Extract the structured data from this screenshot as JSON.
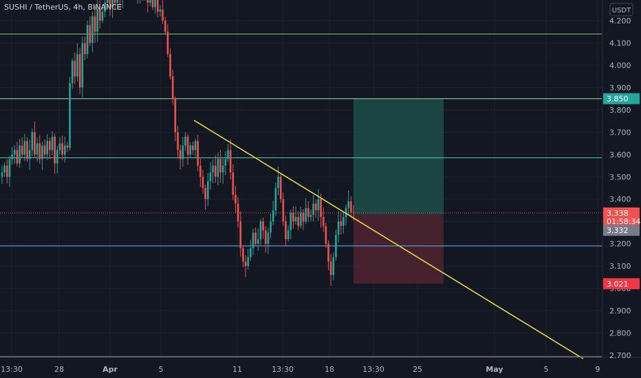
{
  "chart_data": {
    "type": "candlestick",
    "title": "SUSHI / TetherUS, 4h, BINANCE",
    "currency": "USDT",
    "y_ticks": [
      "4.200",
      "4.100",
      "4.000",
      "3.900",
      "3.800",
      "3.700",
      "3.600",
      "3.500",
      "3.400",
      "3.300",
      "3.200",
      "3.100",
      "3.000",
      "2.900",
      "2.800",
      "2.700"
    ],
    "y_range": [
      2.69,
      4.25
    ],
    "x_labels": [
      "13:30",
      "28",
      "Apr",
      "5",
      "11",
      "13:30",
      "18",
      "13:30",
      "25",
      "May",
      "5",
      "9"
    ],
    "bold_x_labels": [
      "Apr",
      "May"
    ],
    "horizontal_lines": [
      {
        "price": 4.14,
        "color": "#81c784"
      },
      {
        "price": 3.85,
        "color": "#a5d6a7"
      },
      {
        "price": 3.585,
        "color": "#4dd0c4"
      },
      {
        "price": 3.19,
        "color": "#64b5f6"
      },
      {
        "price": 2.694,
        "color": "#9e9e9e"
      }
    ],
    "current_price_line": {
      "price": 3.338,
      "color": "#ef5350"
    },
    "trendline": {
      "color": "#f2e24d",
      "start_price": 3.75,
      "end_price": 2.69
    },
    "position": {
      "entry": 3.332,
      "target": 3.85,
      "stop": 3.021,
      "profit_color": "#1c4a46",
      "loss_color": "#4c2230"
    },
    "price_badges": [
      {
        "label": "3.850",
        "bg": "#26a69a",
        "fg": "#ffffff",
        "price": 3.85
      },
      {
        "label": "3.338",
        "bg": "#ef5350",
        "fg": "#ffffff",
        "price": 3.338
      },
      {
        "label": "01:58:34",
        "bg": "#ef5350",
        "fg": "#ffffff",
        "price": 3.301
      },
      {
        "label": "3.332",
        "bg": "#787b86",
        "fg": "#ffffff",
        "price": 3.26
      },
      {
        "label": "3.021",
        "bg": "#f23645",
        "fg": "#ffffff",
        "price": 3.021
      }
    ],
    "candles_close": [
      3.52,
      3.55,
      3.5,
      3.58,
      3.6,
      3.62,
      3.56,
      3.64,
      3.6,
      3.66,
      3.58,
      3.62,
      3.7,
      3.6,
      3.65,
      3.58,
      3.64,
      3.6,
      3.66,
      3.62,
      3.68,
      3.56,
      3.62,
      3.65,
      3.6,
      3.64,
      3.63,
      3.92,
      4.02,
      3.95,
      4.05,
      3.9,
      4.1,
      4.05,
      4.18,
      4.1,
      4.22,
      4.15,
      4.25,
      4.2,
      4.24,
      4.28,
      4.3,
      4.26,
      4.32,
      4.28,
      4.35,
      4.3,
      4.4,
      4.35,
      4.38,
      4.32,
      4.4,
      4.38,
      4.32,
      4.36,
      4.3,
      4.34,
      4.28,
      4.32,
      4.26,
      4.3,
      4.24,
      4.25,
      4.2,
      4.15,
      4.05,
      3.95,
      3.85,
      3.7,
      3.62,
      3.58,
      3.64,
      3.68,
      3.6,
      3.64,
      3.62,
      3.66,
      3.55,
      3.5,
      3.45,
      3.4,
      3.48,
      3.52,
      3.55,
      3.5,
      3.58,
      3.52,
      3.55,
      3.58,
      3.62,
      3.52,
      3.42,
      3.38,
      3.3,
      3.18,
      3.12,
      3.1,
      3.14,
      3.18,
      3.25,
      3.2,
      3.22,
      3.3,
      3.26,
      3.2,
      3.25,
      3.3,
      3.35,
      3.45,
      3.5,
      3.4,
      3.3,
      3.22,
      3.26,
      3.34,
      3.3,
      3.32,
      3.28,
      3.34,
      3.3,
      3.36,
      3.32,
      3.33,
      3.38,
      3.35,
      3.4,
      3.32,
      3.28,
      3.2,
      3.12,
      3.06,
      3.14,
      3.24,
      3.3,
      3.28,
      3.32,
      3.36,
      3.39,
      3.34,
      3.338
    ]
  }
}
